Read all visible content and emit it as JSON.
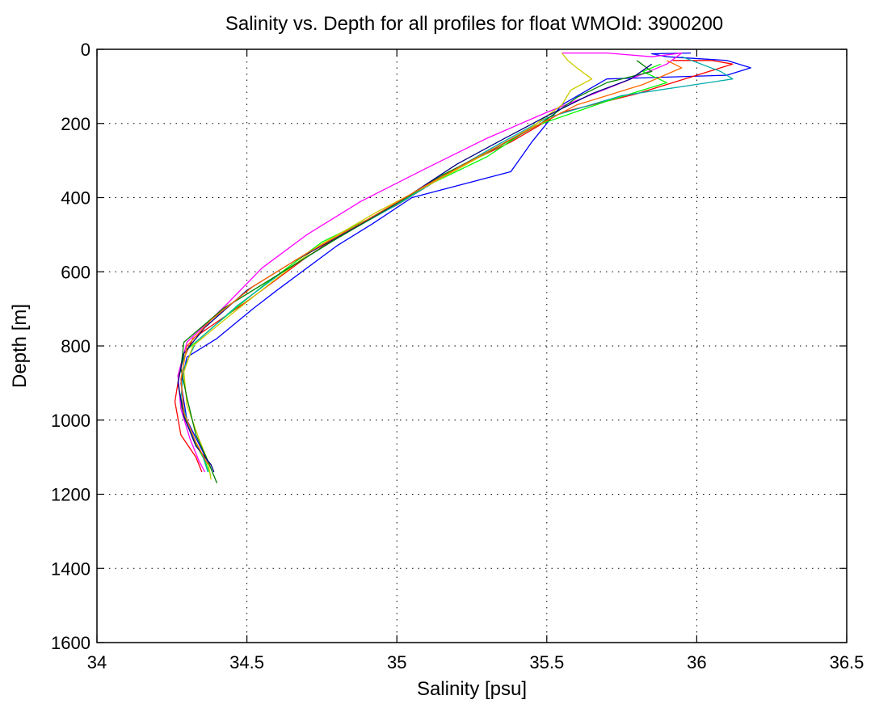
{
  "chart_data": {
    "type": "line",
    "title": "Salinity vs. Depth for all profiles for float WMOId: 3900200",
    "xlabel": "Salinity [psu]",
    "ylabel": "Depth [m]",
    "xlim": [
      34,
      36.5
    ],
    "ylim": [
      0,
      1600
    ],
    "y_reversed": true,
    "xticks": [
      "34",
      "34.5",
      "35",
      "35.5",
      "36",
      "36.5"
    ],
    "yticks": [
      "0",
      "200",
      "400",
      "600",
      "800",
      "1000",
      "1200",
      "1400",
      "1600"
    ],
    "grid": true,
    "legend": "none",
    "series": [
      {
        "color": "#0000ff",
        "points": [
          [
            35.98,
            10
          ],
          [
            35.85,
            12
          ],
          [
            35.9,
            20
          ],
          [
            36.1,
            30
          ],
          [
            36.18,
            50
          ],
          [
            36.1,
            70
          ],
          [
            35.7,
            80
          ],
          [
            35.55,
            150
          ],
          [
            35.45,
            250
          ],
          [
            35.38,
            330
          ],
          [
            35.05,
            400
          ],
          [
            34.92,
            470
          ],
          [
            34.8,
            530
          ],
          [
            34.6,
            650
          ],
          [
            34.52,
            700
          ],
          [
            34.4,
            780
          ],
          [
            34.3,
            830
          ],
          [
            34.28,
            900
          ],
          [
            34.3,
            1000
          ],
          [
            34.35,
            1080
          ],
          [
            34.38,
            1130
          ]
        ]
      },
      {
        "color": "#ff0000",
        "points": [
          [
            35.92,
            30
          ],
          [
            36.05,
            30
          ],
          [
            36.12,
            40
          ],
          [
            35.8,
            120
          ],
          [
            35.55,
            170
          ],
          [
            35.38,
            250
          ],
          [
            35.2,
            320
          ],
          [
            35.0,
            420
          ],
          [
            34.85,
            480
          ],
          [
            34.7,
            560
          ],
          [
            34.5,
            680
          ],
          [
            34.32,
            780
          ],
          [
            34.28,
            850
          ],
          [
            34.26,
            950
          ],
          [
            34.28,
            1040
          ],
          [
            34.33,
            1100
          ],
          [
            34.35,
            1140
          ]
        ]
      },
      {
        "color": "#00ff00",
        "points": [
          [
            35.88,
            40
          ],
          [
            35.82,
            60
          ],
          [
            35.9,
            90
          ],
          [
            35.7,
            140
          ],
          [
            35.45,
            210
          ],
          [
            35.3,
            290
          ],
          [
            35.12,
            360
          ],
          [
            34.95,
            440
          ],
          [
            34.75,
            520
          ],
          [
            34.55,
            640
          ],
          [
            34.4,
            740
          ],
          [
            34.3,
            810
          ],
          [
            34.27,
            880
          ],
          [
            34.28,
            960
          ],
          [
            34.32,
            1050
          ],
          [
            34.36,
            1110
          ],
          [
            34.38,
            1150
          ]
        ]
      },
      {
        "color": "#00aaaa",
        "points": [
          [
            35.95,
            20
          ],
          [
            36.08,
            60
          ],
          [
            36.12,
            80
          ],
          [
            35.75,
            125
          ],
          [
            35.5,
            185
          ],
          [
            35.33,
            260
          ],
          [
            35.18,
            330
          ],
          [
            35.02,
            410
          ],
          [
            34.82,
            500
          ],
          [
            34.62,
            600
          ],
          [
            34.47,
            690
          ],
          [
            34.33,
            790
          ],
          [
            34.29,
            860
          ],
          [
            34.28,
            940
          ],
          [
            34.31,
            1030
          ],
          [
            34.35,
            1090
          ],
          [
            34.37,
            1140
          ]
        ]
      },
      {
        "color": "#ff00ff",
        "points": [
          [
            35.55,
            10
          ],
          [
            35.7,
            10
          ],
          [
            35.85,
            20
          ],
          [
            35.95,
            10
          ],
          [
            35.9,
            40
          ],
          [
            35.75,
            90
          ],
          [
            35.5,
            170
          ],
          [
            35.3,
            240
          ],
          [
            35.1,
            320
          ],
          [
            34.88,
            410
          ],
          [
            34.7,
            500
          ],
          [
            34.55,
            590
          ],
          [
            34.43,
            690
          ],
          [
            34.3,
            790
          ],
          [
            34.27,
            880
          ],
          [
            34.28,
            970
          ],
          [
            34.31,
            1050
          ],
          [
            34.34,
            1110
          ],
          [
            34.36,
            1140
          ]
        ]
      },
      {
        "color": "#cccc00",
        "points": [
          [
            35.55,
            10
          ],
          [
            35.57,
            30
          ],
          [
            35.6,
            50
          ],
          [
            35.65,
            80
          ],
          [
            35.58,
            110
          ],
          [
            35.55,
            150
          ],
          [
            35.45,
            210
          ],
          [
            35.3,
            280
          ],
          [
            35.12,
            360
          ],
          [
            34.93,
            440
          ],
          [
            34.74,
            530
          ],
          [
            34.58,
            630
          ],
          [
            34.44,
            720
          ],
          [
            34.32,
            800
          ],
          [
            34.29,
            870
          ],
          [
            34.3,
            960
          ],
          [
            34.34,
            1050
          ],
          [
            34.37,
            1110
          ],
          [
            34.38,
            1160
          ]
        ]
      },
      {
        "color": "#008000",
        "points": [
          [
            35.8,
            30
          ],
          [
            35.85,
            60
          ],
          [
            35.7,
            90
          ],
          [
            35.6,
            130
          ],
          [
            35.48,
            200
          ],
          [
            35.32,
            270
          ],
          [
            35.15,
            340
          ],
          [
            34.97,
            430
          ],
          [
            34.78,
            520
          ],
          [
            34.58,
            620
          ],
          [
            34.42,
            700
          ],
          [
            34.29,
            790
          ],
          [
            34.28,
            860
          ],
          [
            34.3,
            940
          ],
          [
            34.33,
            1040
          ],
          [
            34.37,
            1110
          ],
          [
            34.4,
            1170
          ]
        ]
      },
      {
        "color": "#000080",
        "points": [
          [
            35.85,
            40
          ],
          [
            35.78,
            80
          ],
          [
            35.65,
            120
          ],
          [
            35.5,
            180
          ],
          [
            35.36,
            240
          ],
          [
            35.2,
            310
          ],
          [
            35.03,
            400
          ],
          [
            34.86,
            480
          ],
          [
            34.66,
            570
          ],
          [
            34.5,
            650
          ],
          [
            34.36,
            750
          ],
          [
            34.29,
            820
          ],
          [
            34.27,
            900
          ],
          [
            34.29,
            990
          ],
          [
            34.33,
            1070
          ],
          [
            34.38,
            1120
          ],
          [
            34.39,
            1140
          ]
        ]
      },
      {
        "color": "#ff6600",
        "points": [
          [
            35.9,
            30
          ],
          [
            35.95,
            50
          ],
          [
            35.82,
            95
          ],
          [
            35.6,
            150
          ],
          [
            35.42,
            225
          ],
          [
            35.26,
            295
          ],
          [
            35.08,
            375
          ],
          [
            34.9,
            460
          ],
          [
            34.7,
            550
          ],
          [
            34.52,
            640
          ],
          [
            34.38,
            730
          ],
          [
            34.3,
            800
          ],
          [
            34.28,
            890
          ],
          [
            34.29,
            980
          ],
          [
            34.33,
            1060
          ],
          [
            34.37,
            1120
          ]
        ]
      }
    ]
  }
}
